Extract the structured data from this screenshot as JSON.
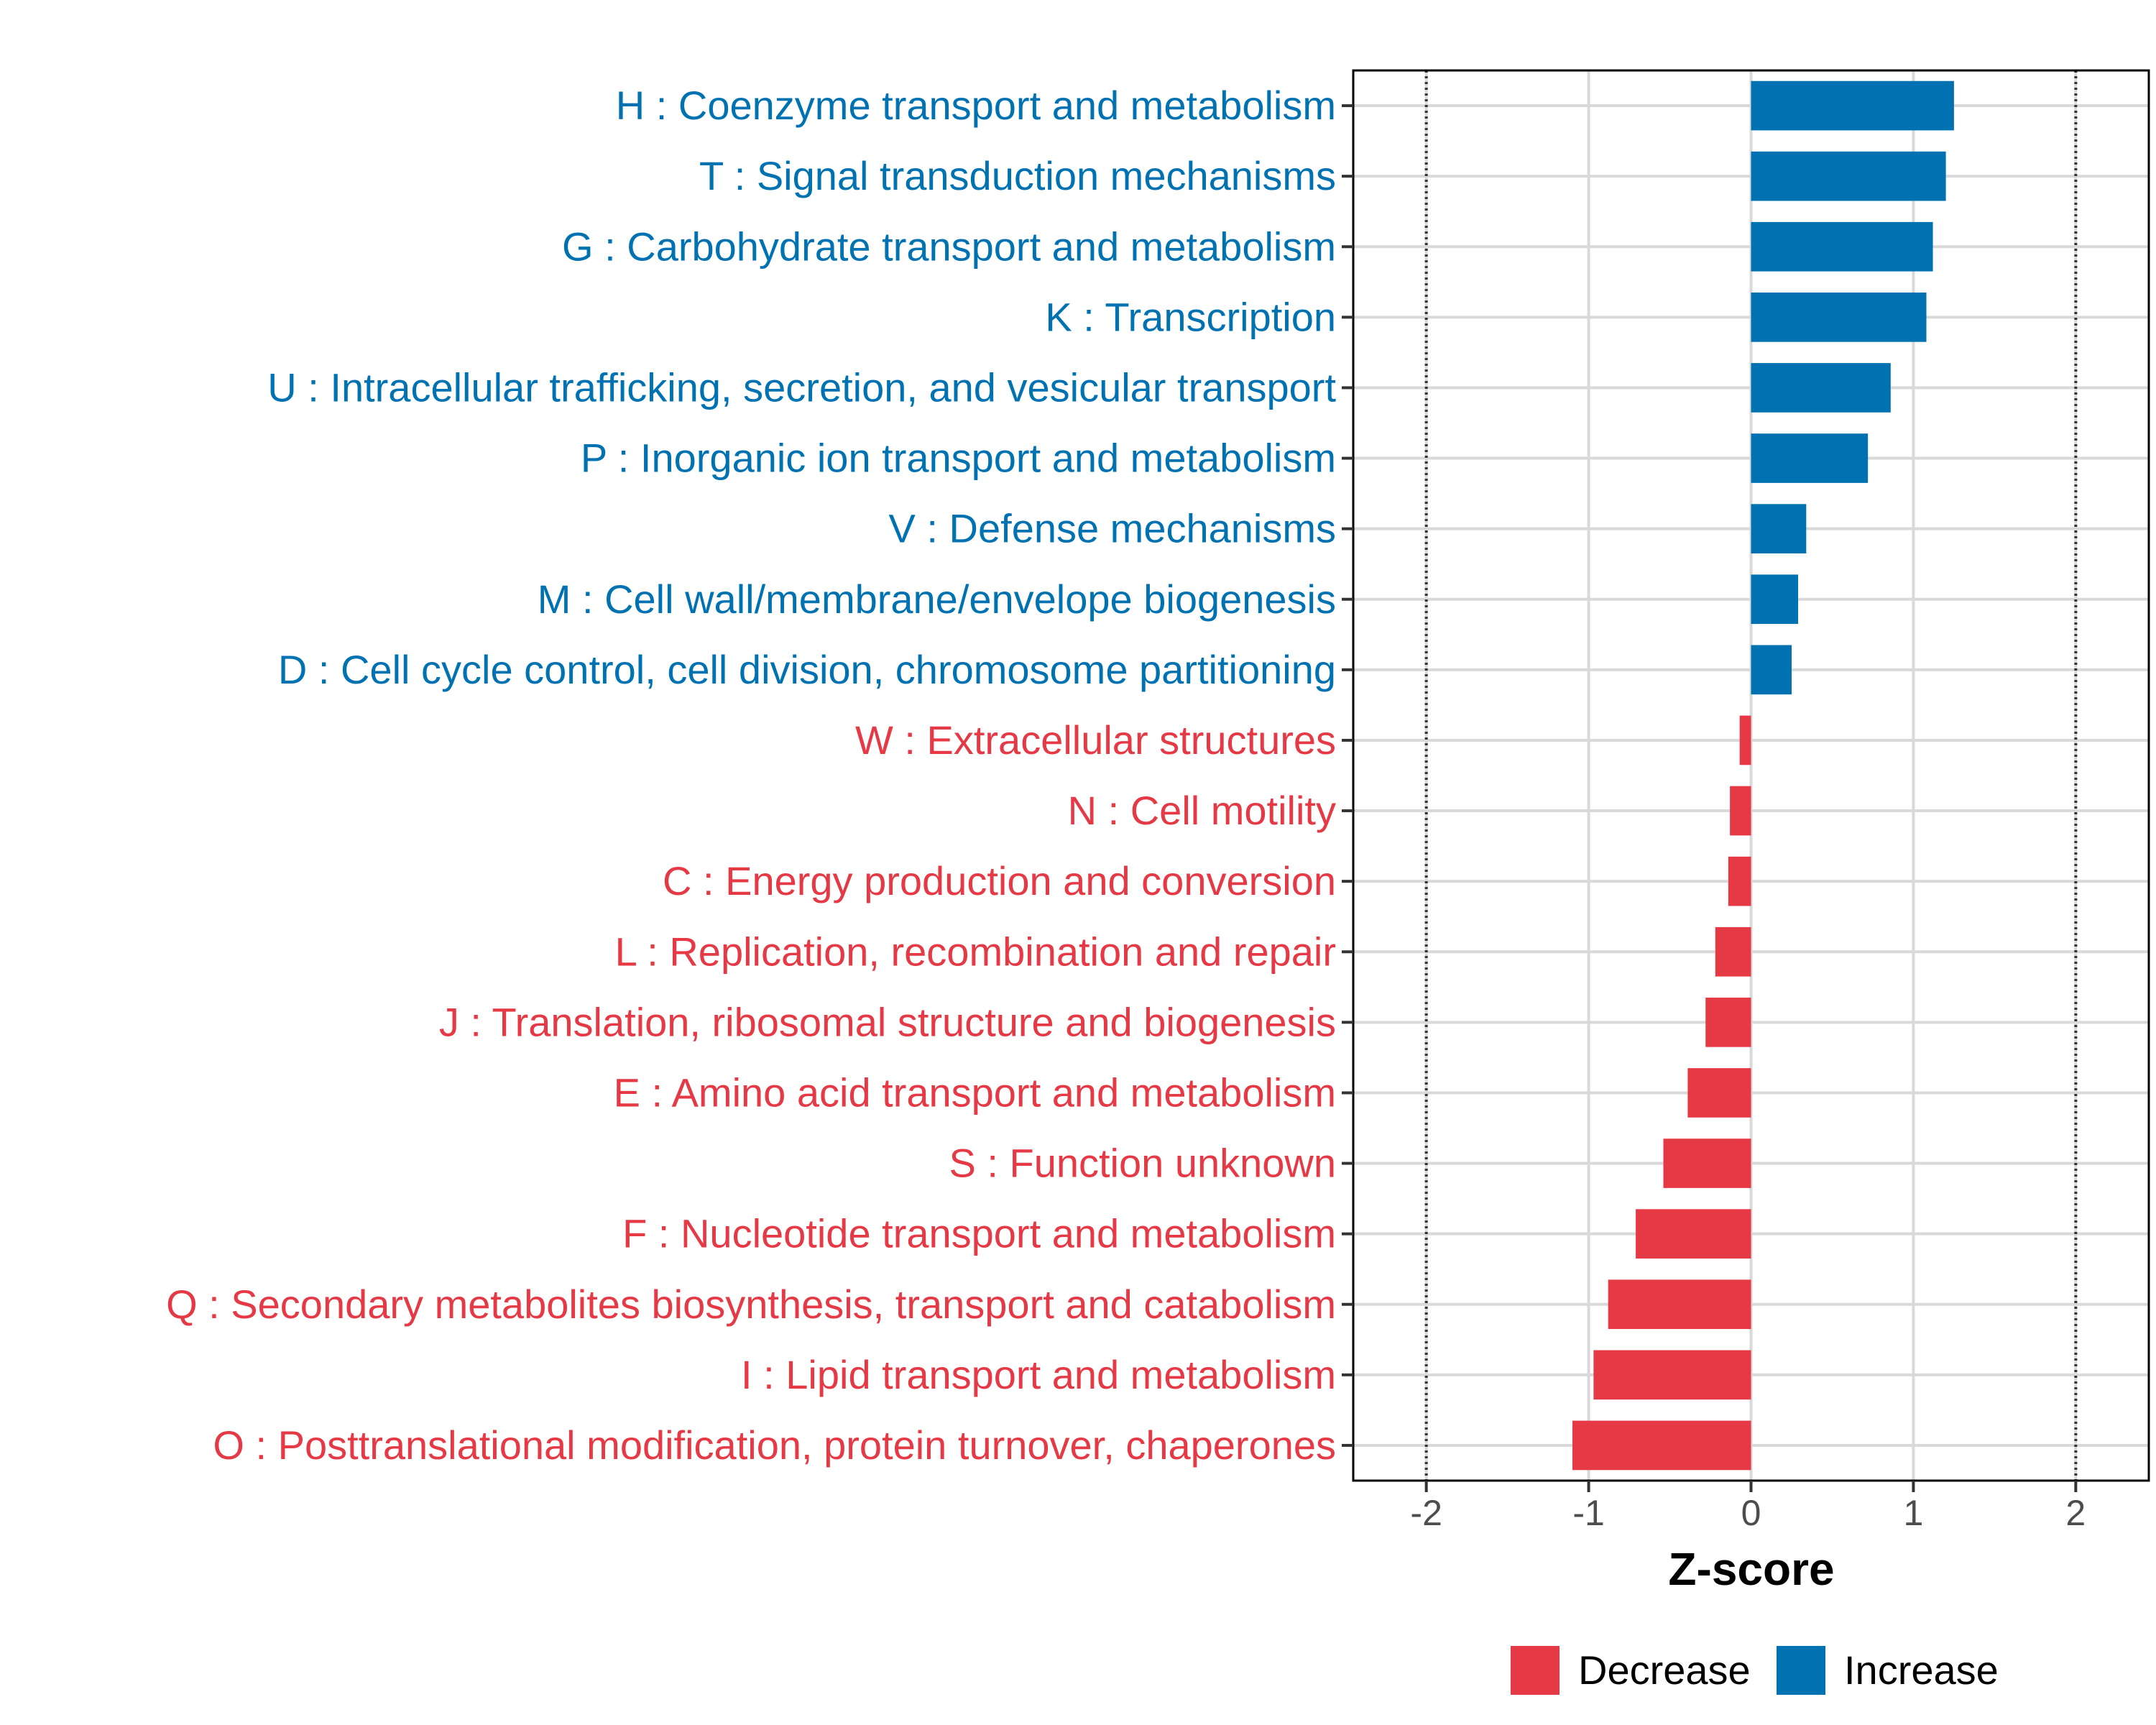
{
  "chart_data": {
    "type": "bar",
    "orientation": "horizontal",
    "title": "",
    "xlabel": "Z-score",
    "ylabel": "",
    "xlim": [
      -2.45,
      2.45
    ],
    "xticks": [
      -2,
      -1,
      0,
      1,
      2
    ],
    "xtick_labels": [
      "-2",
      "-1",
      "0",
      "1",
      "2"
    ],
    "reference_lines": [
      -2,
      2
    ],
    "grid": true,
    "legend_position": "bottom",
    "colors": {
      "Increase": "#0072b2",
      "Decrease": "#e63946"
    },
    "legend": [
      {
        "name": "Decrease",
        "color": "#e63946"
      },
      {
        "name": "Increase",
        "color": "#0072b2"
      }
    ],
    "categories": [
      "H : Coenzyme transport and metabolism",
      "T : Signal transduction mechanisms",
      "G : Carbohydrate transport and metabolism",
      "K : Transcription",
      "U : Intracellular trafficking, secretion, and vesicular transport",
      "P : Inorganic ion transport and metabolism",
      "V : Defense mechanisms",
      "M : Cell wall/membrane/envelope biogenesis",
      "D : Cell cycle control, cell division, chromosome partitioning",
      "W : Extracellular structures",
      "N : Cell motility",
      "C : Energy production and conversion",
      "L : Replication, recombination and repair",
      "J : Translation, ribosomal structure and biogenesis",
      "E : Amino acid transport and metabolism",
      "S : Function unknown",
      "F : Nucleotide transport and metabolism",
      "Q : Secondary metabolites biosynthesis, transport and catabolism",
      "I : Lipid transport and metabolism",
      "O : Posttranslational modification, protein turnover, chaperones"
    ],
    "values": [
      1.25,
      1.2,
      1.12,
      1.08,
      0.86,
      0.72,
      0.34,
      0.29,
      0.25,
      -0.07,
      -0.13,
      -0.14,
      -0.22,
      -0.28,
      -0.39,
      -0.54,
      -0.71,
      -0.88,
      -0.97,
      -1.1
    ],
    "groups": [
      "Increase",
      "Increase",
      "Increase",
      "Increase",
      "Increase",
      "Increase",
      "Increase",
      "Increase",
      "Increase",
      "Decrease",
      "Decrease",
      "Decrease",
      "Decrease",
      "Decrease",
      "Decrease",
      "Decrease",
      "Decrease",
      "Decrease",
      "Decrease",
      "Decrease"
    ]
  }
}
